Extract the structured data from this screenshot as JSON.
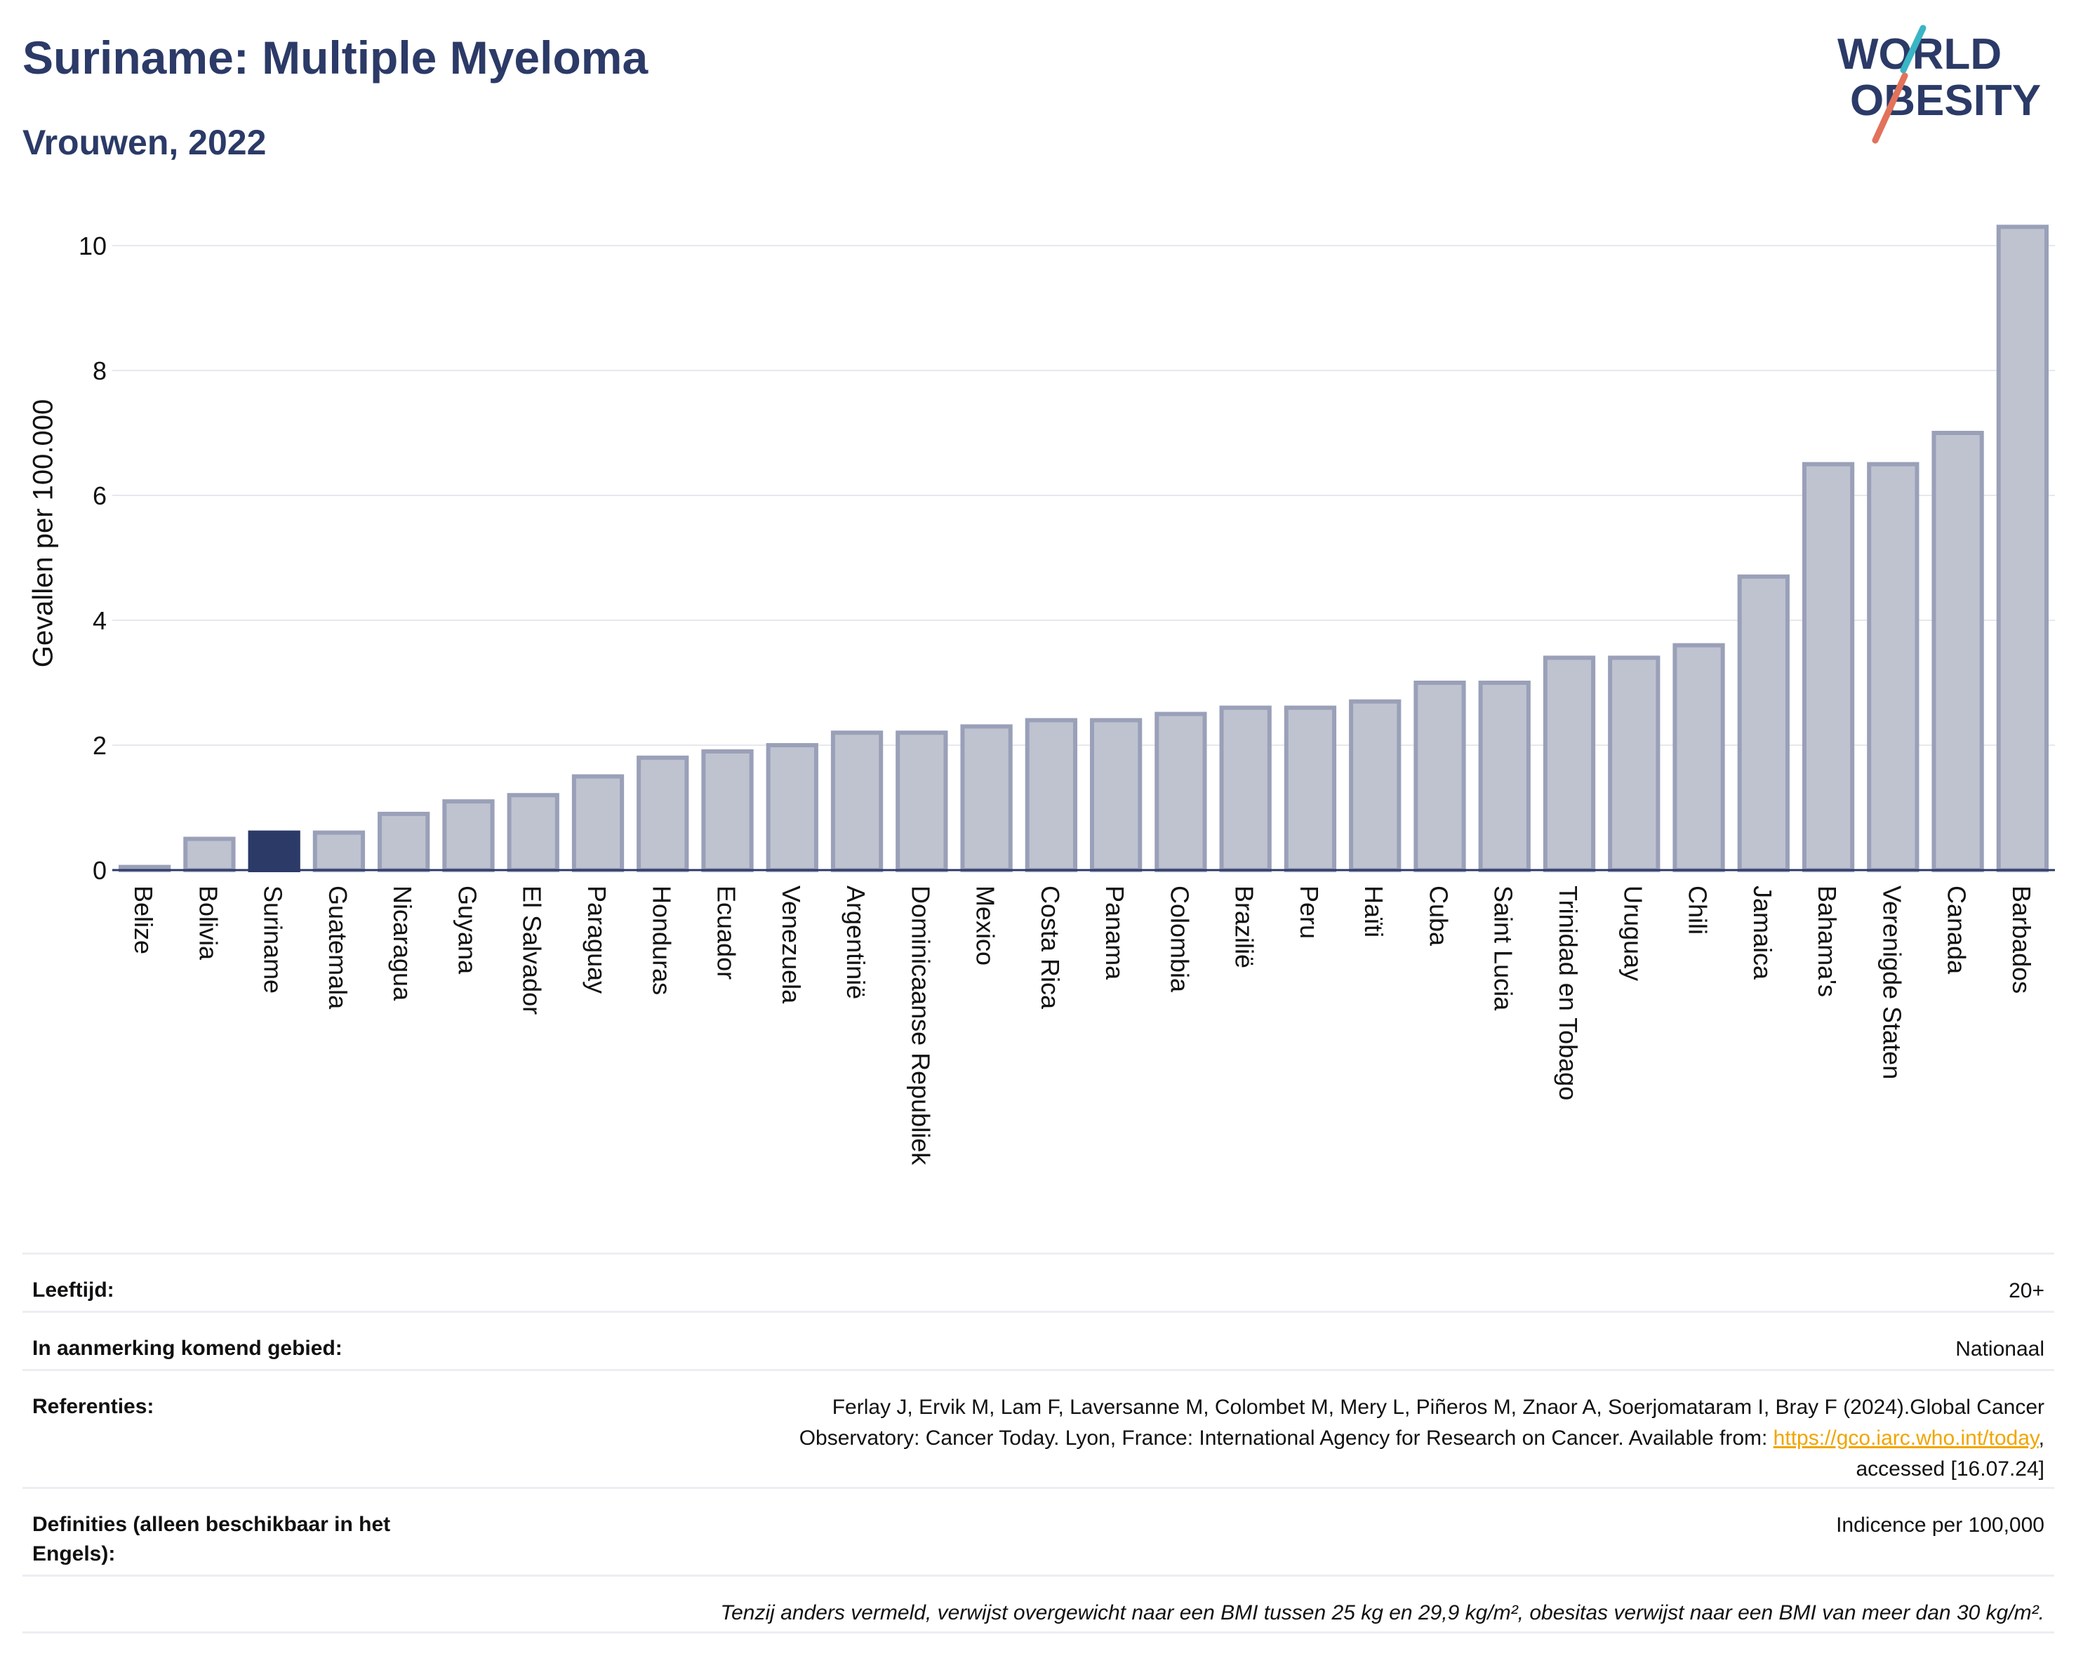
{
  "title": "Suriname: Multiple Myeloma",
  "subtitle": "Vrouwen, 2022",
  "logo": {
    "line1": "WORLD",
    "line2": "OBESITY",
    "text_color": "#2b3a67",
    "accent1": "#3ab5c6",
    "accent2": "#e2725b"
  },
  "colors": {
    "highlight": "#2b3a67",
    "bar_fill": "#bfc3d0",
    "bar_stroke": "#9aa0b8",
    "grid": "#e6e8ee"
  },
  "chart_data": {
    "type": "bar",
    "title": "Suriname: Multiple Myeloma",
    "subtitle": "Vrouwen, 2022",
    "ylabel": "Gevallen per 100.000",
    "xlabel": "",
    "ylim": [
      0,
      10.5
    ],
    "yticks": [
      0,
      2,
      4,
      6,
      8,
      10
    ],
    "grid": true,
    "highlight": "Suriname",
    "categories": [
      "Belize",
      "Bolivia",
      "Suriname",
      "Guatemala",
      "Nicaragua",
      "Guyana",
      "El Salvador",
      "Paraguay",
      "Honduras",
      "Ecuador",
      "Venezuela",
      "Argentinië",
      "Dominicaanse Republiek",
      "Mexico",
      "Costa Rica",
      "Panama",
      "Colombia",
      "Brazilië",
      "Peru",
      "Haïti",
      "Cuba",
      "Saint Lucia",
      "Trinidad en Tobago",
      "Uruguay",
      "Chili",
      "Jamaica",
      "Bahama's",
      "Verenigde Staten",
      "Canada",
      "Barbados"
    ],
    "values": [
      0.05,
      0.5,
      0.6,
      0.6,
      0.9,
      1.1,
      1.2,
      1.5,
      1.8,
      1.9,
      2.0,
      2.2,
      2.2,
      2.3,
      2.4,
      2.4,
      2.5,
      2.6,
      2.6,
      2.7,
      3.0,
      3.0,
      3.4,
      3.4,
      3.6,
      4.7,
      6.5,
      6.5,
      7.0,
      10.3
    ]
  },
  "info": {
    "age_label": "Leeftijd:",
    "age_value": "20+",
    "region_label": "In aanmerking komend gebied:",
    "region_value": "Nationaal",
    "ref_label": "Referenties:",
    "ref_text1": "Ferlay J, Ervik M, Lam F, Laversanne M, Colombet M, Mery L, Piñeros M, Znaor A, Soerjomataram I, Bray F (2024).Global Cancer",
    "ref_text2": "Observatory: Cancer Today. Lyon, France: International Agency for Research on Cancer. Available from: ",
    "ref_link": "https://gco.iarc.who.int/today",
    "ref_text3": ",",
    "ref_text4": "accessed [16.07.24]",
    "def_label": "Definities (alleen beschikbaar in het Engels):",
    "def_value": "Indicence per 100,000",
    "note": "Tenzij anders vermeld, verwijst overgewicht naar een BMI tussen 25 kg en 29,9 kg/m², obesitas verwijst naar een BMI van meer dan 30 kg/m²."
  }
}
